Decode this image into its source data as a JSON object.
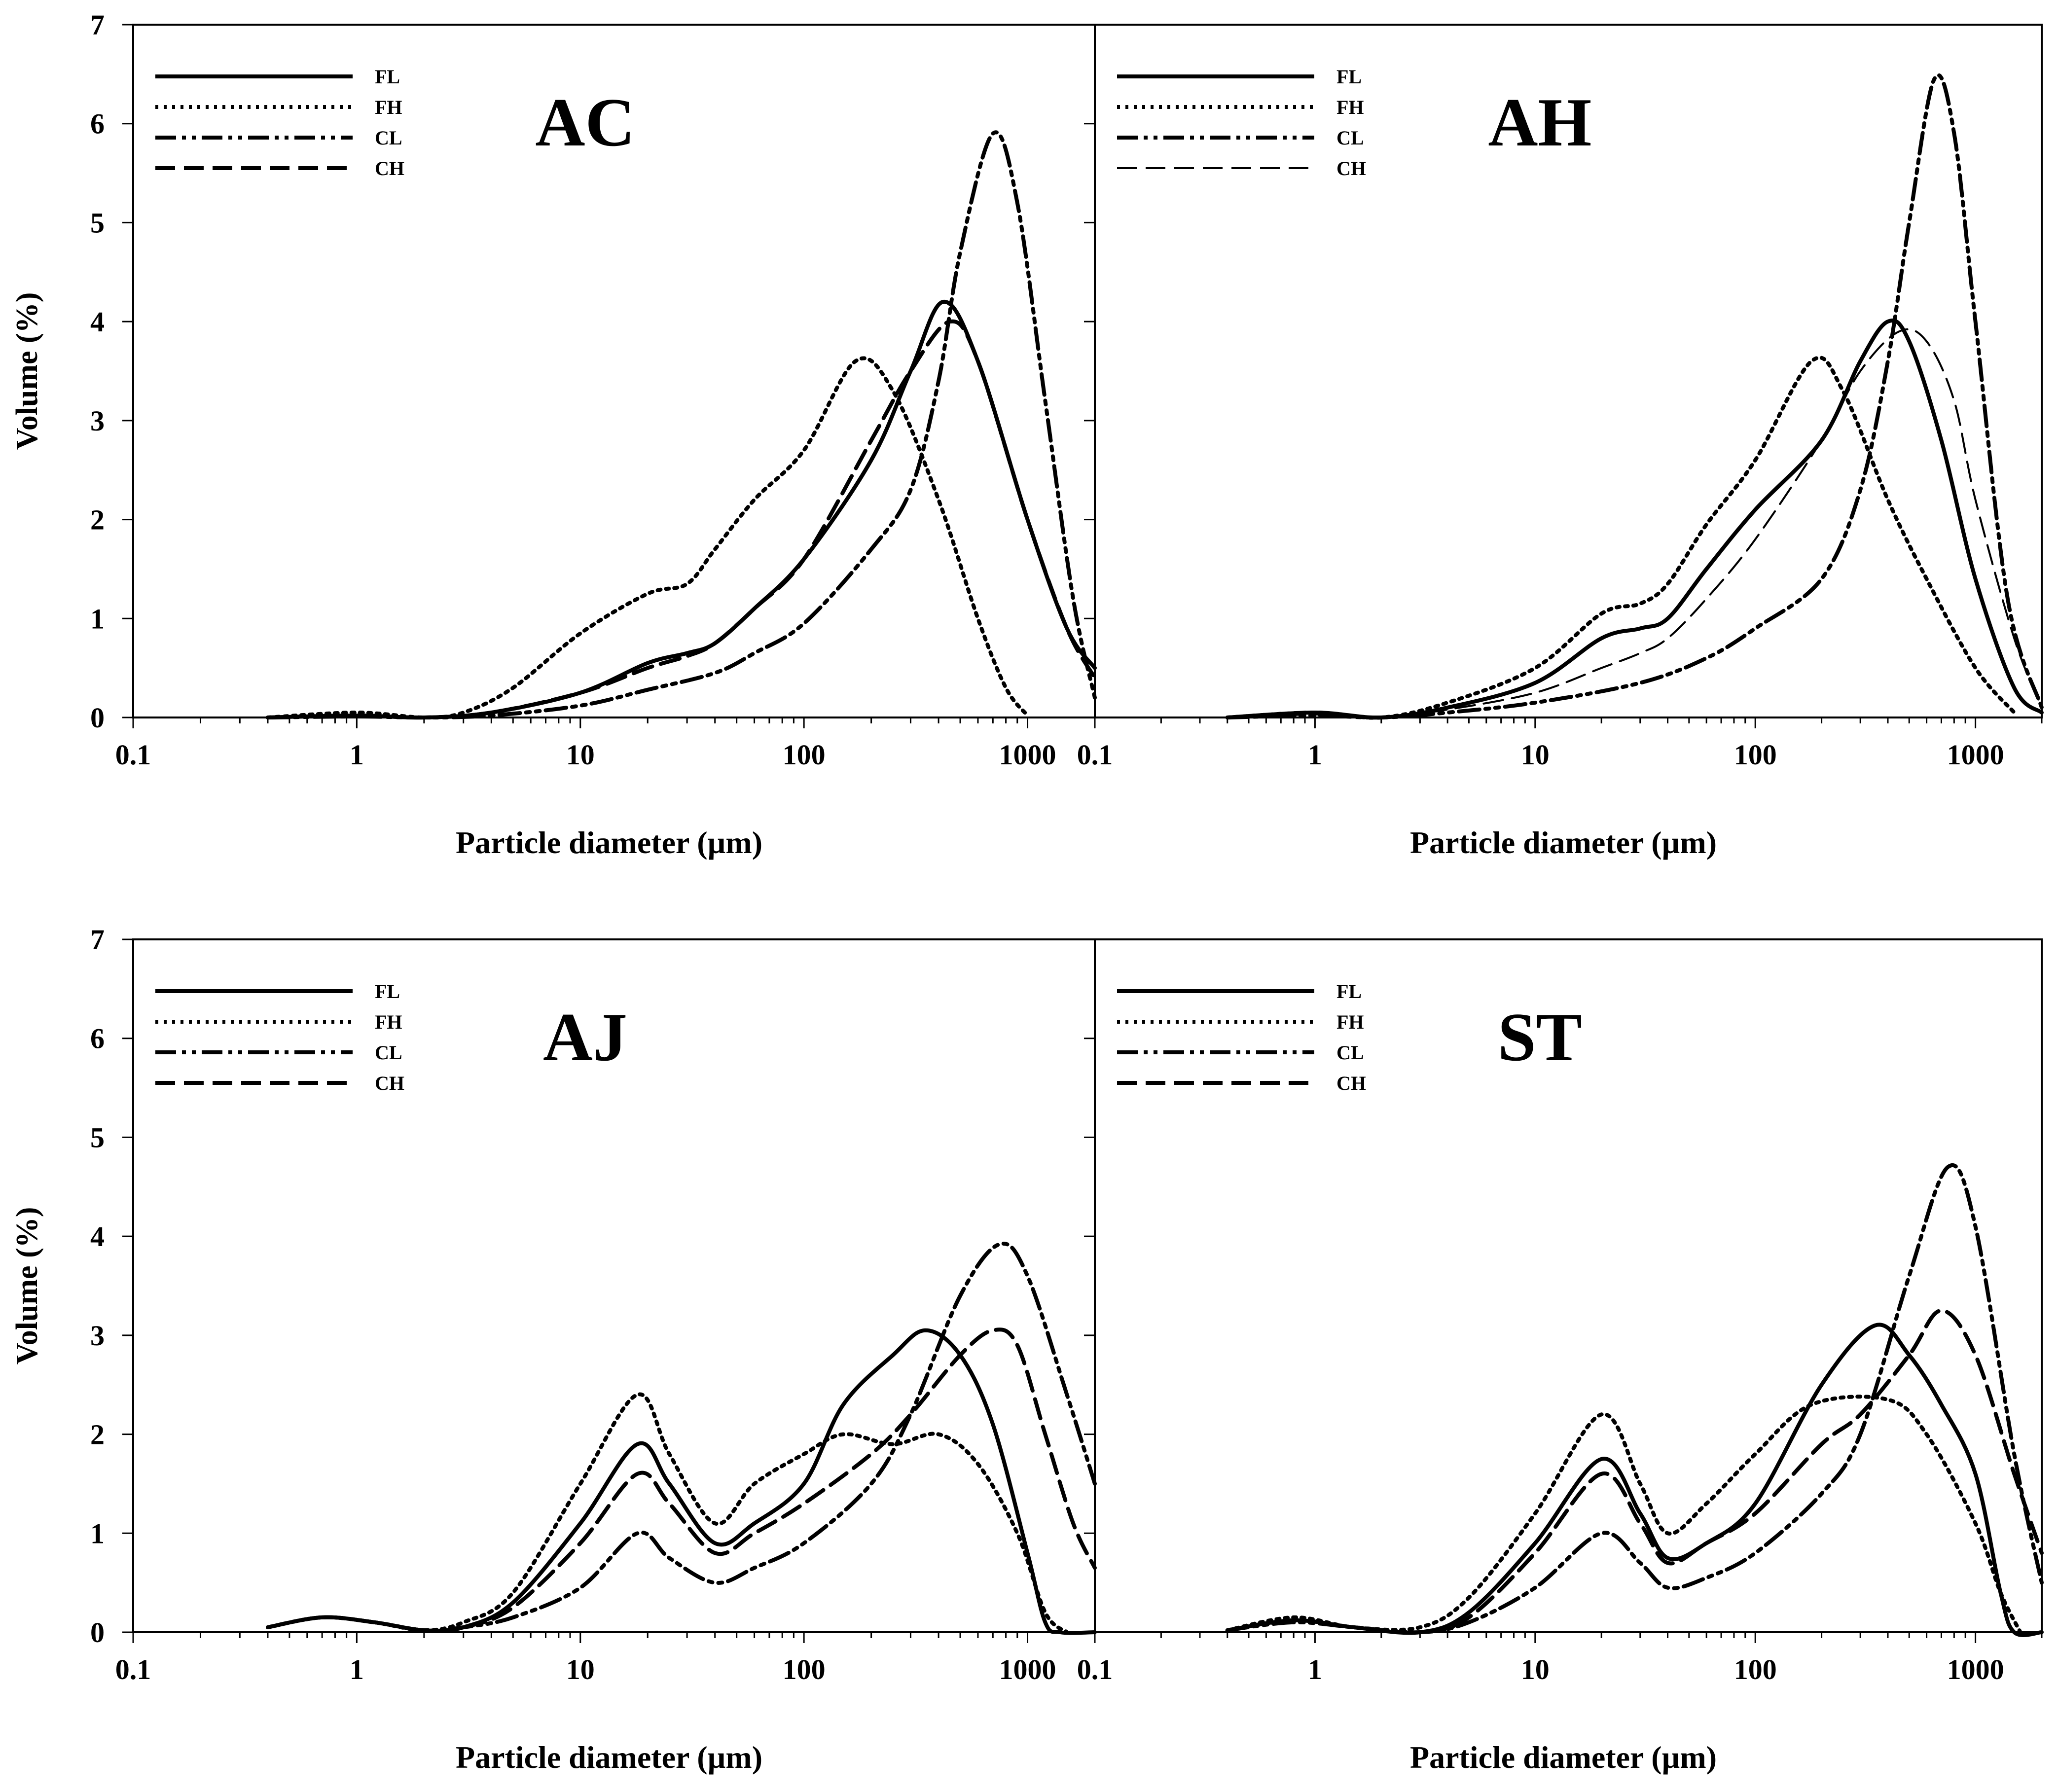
{
  "chart_data": [
    {
      "type": "line",
      "title": "AC",
      "xlabel": "Particle diameter (µm)",
      "ylabel": "Volume (%)",
      "xscale": "log",
      "xlim": [
        0.1,
        2000
      ],
      "ylim": [
        0,
        7
      ],
      "xticks": [
        "0.1",
        "1",
        "10",
        "100",
        "1000"
      ],
      "yticks": [
        "0",
        "1",
        "2",
        "3",
        "4",
        "5",
        "6",
        "7"
      ],
      "legend_position": "top-left",
      "series": [
        {
          "name": "FL",
          "style": "solid",
          "x": [
            0.4,
            1,
            2,
            4,
            10,
            20,
            30,
            40,
            60,
            100,
            200,
            300,
            420,
            600,
            1000,
            1500,
            2000
          ],
          "values": [
            0.0,
            0.02,
            0.0,
            0.05,
            0.25,
            0.55,
            0.65,
            0.75,
            1.1,
            1.6,
            2.6,
            3.5,
            4.2,
            3.6,
            2.0,
            0.9,
            0.5
          ]
        },
        {
          "name": "FH",
          "style": "dotted",
          "x": [
            0.4,
            1,
            2,
            3,
            5,
            10,
            20,
            30,
            40,
            60,
            100,
            170,
            250,
            400,
            600,
            800,
            1000
          ],
          "values": [
            0.0,
            0.05,
            0.0,
            0.05,
            0.3,
            0.85,
            1.25,
            1.35,
            1.7,
            2.2,
            2.7,
            3.6,
            3.3,
            2.2,
            1.0,
            0.3,
            0.02
          ]
        },
        {
          "name": "CL",
          "style": "dash-dot-dot",
          "x": [
            0.4,
            1,
            2,
            4,
            10,
            20,
            40,
            60,
            100,
            200,
            300,
            400,
            500,
            700,
            900,
            1200,
            1600,
            2000
          ],
          "values": [
            0.0,
            0.01,
            0.0,
            0.02,
            0.12,
            0.28,
            0.45,
            0.65,
            0.95,
            1.7,
            2.3,
            3.4,
            4.7,
            5.9,
            5.2,
            3.2,
            1.2,
            0.2
          ]
        },
        {
          "name": "CH",
          "style": "dashed",
          "x": [
            0.4,
            1,
            2,
            4,
            10,
            20,
            30,
            40,
            60,
            100,
            200,
            300,
            450,
            600,
            1000,
            1500,
            2000
          ],
          "values": [
            0.0,
            0.02,
            0.0,
            0.05,
            0.25,
            0.5,
            0.62,
            0.75,
            1.1,
            1.6,
            2.8,
            3.5,
            4.0,
            3.6,
            2.0,
            0.9,
            0.4
          ]
        }
      ]
    },
    {
      "type": "line",
      "title": "AH",
      "xlabel": "Particle diameter (µm)",
      "ylabel": "",
      "xscale": "log",
      "xlim": [
        0.1,
        2000
      ],
      "ylim": [
        0,
        7
      ],
      "xticks": [
        "0.1",
        "1",
        "10",
        "100",
        "1000"
      ],
      "legend_position": "top-left",
      "series": [
        {
          "name": "FL",
          "style": "solid",
          "x": [
            0.4,
            1,
            2,
            4,
            10,
            20,
            30,
            40,
            60,
            100,
            200,
            300,
            400,
            500,
            700,
            1000,
            1500,
            2000
          ],
          "values": [
            0.0,
            0.05,
            0.0,
            0.1,
            0.35,
            0.8,
            0.9,
            1.0,
            1.5,
            2.1,
            2.8,
            3.6,
            4.0,
            3.8,
            2.8,
            1.4,
            0.3,
            0.05
          ]
        },
        {
          "name": "FH",
          "style": "dotted",
          "x": [
            0.4,
            1,
            2,
            4,
            10,
            20,
            30,
            40,
            60,
            100,
            180,
            250,
            400,
            600,
            1000,
            1500
          ],
          "values": [
            0.0,
            0.05,
            0.0,
            0.15,
            0.5,
            1.05,
            1.15,
            1.35,
            1.95,
            2.6,
            3.6,
            3.3,
            2.2,
            1.4,
            0.5,
            0.05
          ]
        },
        {
          "name": "CL",
          "style": "dash-dot-dot",
          "x": [
            0.4,
            1,
            2,
            4,
            10,
            30,
            60,
            100,
            200,
            300,
            400,
            500,
            650,
            800,
            1000,
            1400,
            2000
          ],
          "values": [
            0.0,
            0.02,
            0.0,
            0.05,
            0.15,
            0.35,
            0.6,
            0.9,
            1.4,
            2.3,
            3.6,
            5.0,
            6.45,
            5.9,
            4.0,
            1.2,
            0.1
          ]
        },
        {
          "name": "CH",
          "style": "thin-dashed",
          "x": [
            0.4,
            1,
            2,
            4,
            10,
            20,
            30,
            40,
            60,
            100,
            200,
            300,
            450,
            600,
            800,
            1000,
            1500,
            2000
          ],
          "values": [
            0.0,
            0.03,
            0.0,
            0.08,
            0.25,
            0.5,
            0.65,
            0.8,
            1.2,
            1.8,
            2.8,
            3.5,
            3.9,
            3.8,
            3.2,
            2.2,
            0.8,
            0.1
          ]
        }
      ]
    },
    {
      "type": "line",
      "title": "AJ",
      "xlabel": "Particle diameter (µm)",
      "ylabel": "Volume (%)",
      "xscale": "log",
      "xlim": [
        0.1,
        2000
      ],
      "ylim": [
        0,
        7
      ],
      "xticks": [
        "0.1",
        "1",
        "10",
        "100",
        "1000"
      ],
      "yticks": [
        "0",
        "1",
        "2",
        "3",
        "4",
        "5",
        "6",
        "7"
      ],
      "legend_position": "top-left",
      "series": [
        {
          "name": "FL",
          "style": "solid",
          "x": [
            0.4,
            0.7,
            1.2,
            2,
            3,
            5,
            10,
            18,
            25,
            40,
            60,
            100,
            150,
            250,
            350,
            500,
            700,
            1000,
            1200,
            1400,
            2000
          ],
          "values": [
            0.05,
            0.15,
            0.1,
            0.02,
            0.05,
            0.3,
            1.1,
            1.9,
            1.5,
            0.9,
            1.1,
            1.5,
            2.3,
            2.8,
            3.05,
            2.8,
            2.1,
            0.8,
            0.1,
            0.0,
            0.0
          ]
        },
        {
          "name": "FH",
          "style": "dotted",
          "x": [
            0.4,
            0.7,
            1.2,
            2,
            3,
            5,
            10,
            18,
            25,
            40,
            60,
            100,
            150,
            250,
            400,
            600,
            900,
            1200,
            1500
          ],
          "values": [
            0.05,
            0.15,
            0.1,
            0.02,
            0.1,
            0.4,
            1.5,
            2.4,
            1.8,
            1.1,
            1.5,
            1.8,
            2.0,
            1.9,
            2.0,
            1.7,
            1.0,
            0.2,
            0.0
          ]
        },
        {
          "name": "CL",
          "style": "dash-dot-dot",
          "x": [
            0.4,
            0.7,
            1.2,
            2,
            3,
            5,
            10,
            18,
            25,
            40,
            60,
            100,
            200,
            300,
            500,
            750,
            1000,
            1500,
            2000
          ],
          "values": [
            0.05,
            0.15,
            0.1,
            0.02,
            0.05,
            0.15,
            0.45,
            1.0,
            0.75,
            0.5,
            0.65,
            0.9,
            1.5,
            2.2,
            3.4,
            3.92,
            3.6,
            2.4,
            1.5
          ]
        },
        {
          "name": "CH",
          "style": "dashed",
          "x": [
            0.4,
            0.7,
            1.2,
            2,
            3,
            5,
            10,
            18,
            25,
            40,
            60,
            100,
            200,
            300,
            500,
            700,
            900,
            1200,
            1600,
            2000
          ],
          "values": [
            0.05,
            0.15,
            0.1,
            0.02,
            0.05,
            0.25,
            0.9,
            1.6,
            1.3,
            0.8,
            1.0,
            1.3,
            1.8,
            2.2,
            2.8,
            3.05,
            2.9,
            2.0,
            1.1,
            0.65
          ]
        }
      ]
    },
    {
      "type": "line",
      "title": "ST",
      "xlabel": "Particle diameter (µm)",
      "ylabel": "",
      "xscale": "log",
      "xlim": [
        0.1,
        2000
      ],
      "ylim": [
        0,
        7
      ],
      "xticks": [
        "0.1",
        "1",
        "10",
        "100",
        "1000"
      ],
      "legend_position": "top-left",
      "series": [
        {
          "name": "FL",
          "style": "solid",
          "x": [
            0.4,
            0.8,
            1.5,
            3,
            5,
            10,
            20,
            30,
            40,
            60,
            100,
            200,
            350,
            500,
            700,
            1000,
            1300,
            1500,
            2000
          ],
          "values": [
            0.02,
            0.12,
            0.05,
            0.0,
            0.2,
            0.9,
            1.75,
            1.2,
            0.75,
            0.9,
            1.3,
            2.5,
            3.1,
            2.8,
            2.3,
            1.6,
            0.4,
            0.0,
            0.0
          ]
        },
        {
          "name": "FH",
          "style": "dotted",
          "x": [
            0.4,
            0.8,
            1.5,
            3,
            5,
            10,
            20,
            30,
            40,
            60,
            100,
            180,
            400,
            600,
            1000,
            1300,
            1600
          ],
          "values": [
            0.02,
            0.15,
            0.05,
            0.05,
            0.35,
            1.2,
            2.2,
            1.5,
            1.0,
            1.3,
            1.8,
            2.3,
            2.35,
            2.0,
            1.1,
            0.4,
            0.0
          ]
        },
        {
          "name": "CL",
          "style": "dash-dot-dot",
          "x": [
            0.4,
            0.8,
            1.5,
            3,
            5,
            10,
            20,
            30,
            40,
            60,
            100,
            200,
            300,
            500,
            750,
            1000,
            1500,
            2000
          ],
          "values": [
            0.02,
            0.1,
            0.05,
            0.0,
            0.1,
            0.45,
            1.0,
            0.7,
            0.45,
            0.55,
            0.8,
            1.4,
            2.0,
            3.6,
            4.7,
            4.1,
            1.8,
            0.5
          ]
        },
        {
          "name": "CH",
          "style": "dashed",
          "x": [
            0.4,
            0.8,
            1.5,
            3,
            5,
            10,
            20,
            30,
            40,
            60,
            100,
            200,
            300,
            500,
            700,
            1000,
            1500,
            2000
          ],
          "values": [
            0.02,
            0.12,
            0.05,
            0.0,
            0.15,
            0.8,
            1.6,
            1.1,
            0.7,
            0.9,
            1.2,
            1.9,
            2.2,
            2.8,
            3.25,
            2.8,
            1.6,
            0.8
          ]
        }
      ]
    }
  ]
}
